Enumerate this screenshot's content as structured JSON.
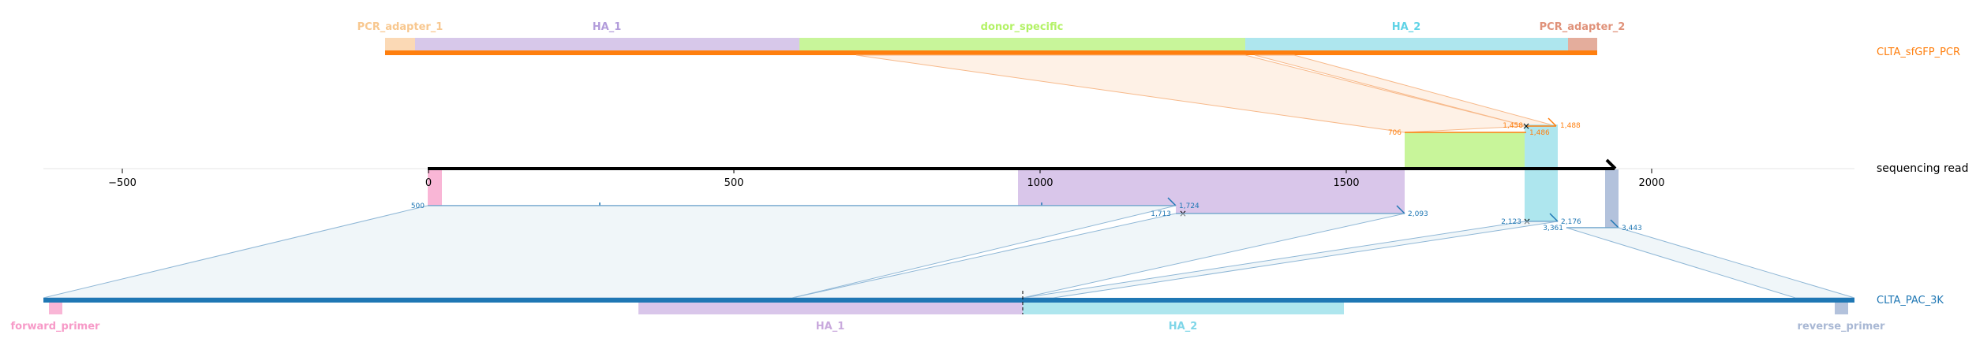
{
  "top_feature_labels": [
    {
      "text": "PCR_adapter_1",
      "color": "#f8c890"
    },
    {
      "text": "HA_1",
      "color": "#b39ddb"
    },
    {
      "text": "donor_specific",
      "color": "#b3f266"
    },
    {
      "text": "HA_2",
      "color": "#5fd3e6"
    },
    {
      "text": "PCR_adapter_2",
      "color": "#e0927a"
    }
  ],
  "top_track_label": "CLTA_sfGFP_PCR",
  "ref_axis_label": "sequencing read",
  "axis_ticks": [
    "−500",
    "0",
    "500",
    "1000",
    "1500",
    "2000"
  ],
  "bottom_track_label": "CLTA_PAC_3K",
  "bottom_feature_labels": [
    {
      "text": "forward_primer",
      "color": "#f79ac8"
    },
    {
      "text": "HA_1",
      "color": "#c9a9dd"
    },
    {
      "text": "HA_2",
      "color": "#7fd6e8"
    },
    {
      "text": "reverse_primer",
      "color": "#a9b8d4"
    }
  ],
  "annotations": {
    "orange": [
      "1,458",
      "1,488",
      "706",
      "1,486"
    ],
    "blue": [
      "500",
      "1,724",
      "1,713",
      "2,093",
      "2,123",
      "2,176",
      "3,361",
      "3,443"
    ]
  },
  "colors": {
    "orange": "#ff7f0e",
    "blue": "#1f77b4",
    "axis": "#000000"
  }
}
